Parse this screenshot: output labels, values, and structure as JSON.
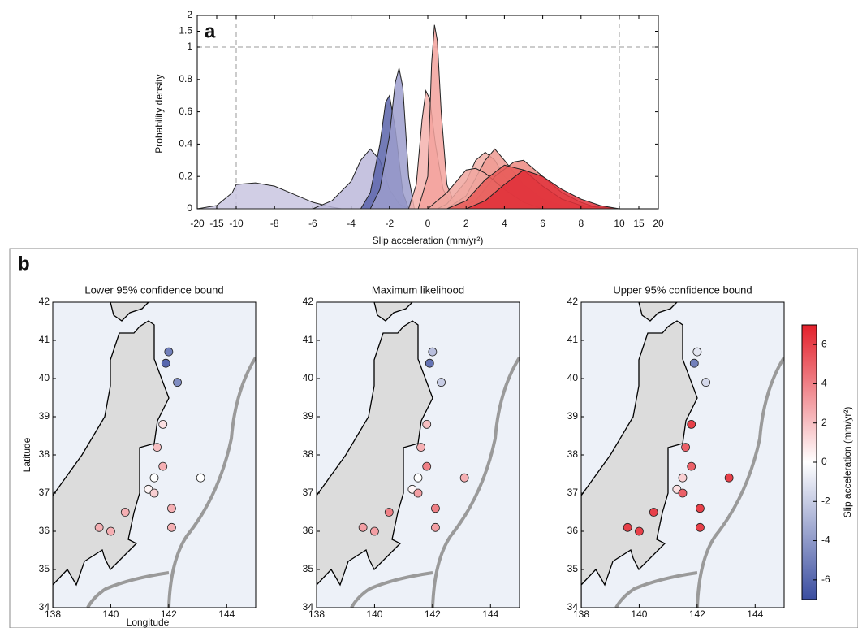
{
  "chart_data": [
    {
      "type": "density",
      "panel_label": "a",
      "y_label": "Probability density",
      "x_label": "Slip acceleration (mm/yr²)",
      "xlim": [
        -20,
        20
      ],
      "ylim": [
        0,
        2
      ],
      "xticks": [
        -20,
        -15,
        -10,
        -8,
        -6,
        -4,
        -2,
        0,
        2,
        4,
        6,
        8,
        10,
        15,
        20
      ],
      "yticks": [
        0,
        0.2,
        0.4,
        0.6,
        0.8,
        1,
        1.5,
        2
      ],
      "reference_lines": {
        "x": [
          -10,
          10
        ],
        "y": [
          1
        ]
      },
      "series": [
        {
          "color": "#c9c5e0",
          "x": [
            -20,
            -15,
            -11,
            -10,
            -9,
            -8,
            -7,
            -6,
            -5,
            -4.5
          ],
          "values": [
            0,
            0.02,
            0.1,
            0.15,
            0.16,
            0.14,
            0.09,
            0.04,
            0.01,
            0
          ]
        },
        {
          "color": "#bcb8da",
          "x": [
            -6,
            -5,
            -4,
            -3.5,
            -3,
            -2.5,
            -2,
            -1.5,
            -1
          ],
          "values": [
            0,
            0.05,
            0.17,
            0.3,
            0.37,
            0.3,
            0.12,
            0.03,
            0
          ]
        },
        {
          "color": "#5a64aa",
          "x": [
            -3.5,
            -3,
            -2.5,
            -2.2,
            -2,
            -1.7,
            -1.3,
            -1
          ],
          "values": [
            0,
            0.1,
            0.4,
            0.66,
            0.7,
            0.5,
            0.1,
            0
          ]
        },
        {
          "color": "#9c9ecd",
          "x": [
            -3,
            -2.5,
            -2,
            -1.7,
            -1.5,
            -1.3,
            -1,
            -0.7
          ],
          "values": [
            0,
            0.12,
            0.45,
            0.78,
            0.87,
            0.75,
            0.2,
            0
          ]
        },
        {
          "color": "#f4b3ae",
          "x": [
            -1,
            -0.6,
            -0.3,
            -0.1,
            0.1,
            0.4,
            0.8,
            1.2,
            1.6
          ],
          "values": [
            0,
            0.15,
            0.55,
            0.73,
            0.68,
            0.4,
            0.12,
            0.03,
            0
          ]
        },
        {
          "color": "#f3a29c",
          "x": [
            -0.5,
            0,
            0.2,
            0.35,
            0.5,
            0.7,
            1,
            1.5
          ],
          "values": [
            0,
            0.2,
            0.9,
            1.7,
            1.2,
            0.6,
            0.15,
            0
          ]
        },
        {
          "color": "#f2b0a8",
          "x": [
            0.5,
            1,
            2,
            2.5,
            3,
            3.5,
            4,
            5,
            6,
            7
          ],
          "values": [
            0,
            0.03,
            0.17,
            0.3,
            0.35,
            0.3,
            0.2,
            0.08,
            0.02,
            0
          ]
        },
        {
          "color": "#ee9a92",
          "x": [
            1,
            2,
            3,
            3.5,
            4,
            5,
            6,
            7,
            8
          ],
          "values": [
            0,
            0.08,
            0.3,
            0.37,
            0.3,
            0.15,
            0.06,
            0.02,
            0
          ]
        },
        {
          "color": "#ec8880",
          "x": [
            1.5,
            2.5,
            3.5,
            4.5,
            5,
            6,
            7,
            8,
            9
          ],
          "values": [
            0,
            0.05,
            0.2,
            0.29,
            0.3,
            0.2,
            0.1,
            0.04,
            0
          ]
        },
        {
          "color": "#f0a69f",
          "x": [
            0,
            1,
            2,
            2.5,
            3,
            4,
            5,
            6
          ],
          "values": [
            0,
            0.1,
            0.24,
            0.25,
            0.22,
            0.12,
            0.04,
            0
          ]
        },
        {
          "color": "#e85a58",
          "x": [
            1,
            2,
            3,
            4,
            5,
            6,
            7,
            8,
            10
          ],
          "values": [
            0,
            0.05,
            0.18,
            0.27,
            0.24,
            0.14,
            0.06,
            0.02,
            0
          ]
        },
        {
          "color": "#e0303a",
          "x": [
            2,
            3,
            4,
            5,
            6,
            7,
            8,
            9,
            10
          ],
          "values": [
            0,
            0.05,
            0.15,
            0.24,
            0.2,
            0.12,
            0.06,
            0.02,
            0
          ]
        }
      ]
    },
    {
      "type": "map",
      "panel_label": "b",
      "x_label": "Longitude",
      "y_label": "Latitude",
      "xlim": [
        138,
        145
      ],
      "ylim": [
        34,
        42
      ],
      "xticks": [
        138,
        140,
        142,
        144
      ],
      "yticks": [
        34,
        35,
        36,
        37,
        38,
        39,
        40,
        41,
        42
      ],
      "stations": {
        "lon": [
          142.0,
          141.9,
          142.3,
          141.8,
          141.6,
          141.8,
          141.5,
          141.3,
          141.5,
          142.1,
          142.1,
          143.1,
          140.5,
          139.6,
          140.0
        ],
        "lat": [
          40.7,
          40.4,
          39.9,
          38.8,
          38.2,
          37.7,
          37.4,
          37.1,
          37.0,
          36.6,
          36.1,
          37.4,
          36.5,
          36.1,
          36.0
        ]
      },
      "maps": [
        {
          "title": "Lower 95% confidence bound",
          "values": [
            -5,
            -6,
            -4.5,
            1,
            2,
            2.5,
            0,
            0.3,
            1.5,
            2.5,
            2.5,
            0,
            2.5,
            2.5,
            2.5
          ]
        },
        {
          "title": "Maximum likelihood",
          "values": [
            -2.5,
            -5.5,
            -2,
            2,
            2.5,
            4,
            0,
            0.3,
            3,
            4,
            3,
            2.5,
            4,
            3,
            3
          ]
        },
        {
          "title": "Upper 95% confidence bound",
          "values": [
            -1,
            -5,
            -1.5,
            6,
            5,
            5,
            1.5,
            1,
            5,
            6,
            6,
            6,
            6,
            6,
            6
          ]
        }
      ],
      "colorbar": {
        "label": "Slip acceleration (mm/yr²)",
        "clim": [
          -7,
          7
        ],
        "ticks": [
          -6,
          -4,
          -2,
          0,
          2,
          4,
          6
        ],
        "colors": [
          "#3a4da0",
          "#ffffff",
          "#e3202b"
        ]
      }
    }
  ]
}
